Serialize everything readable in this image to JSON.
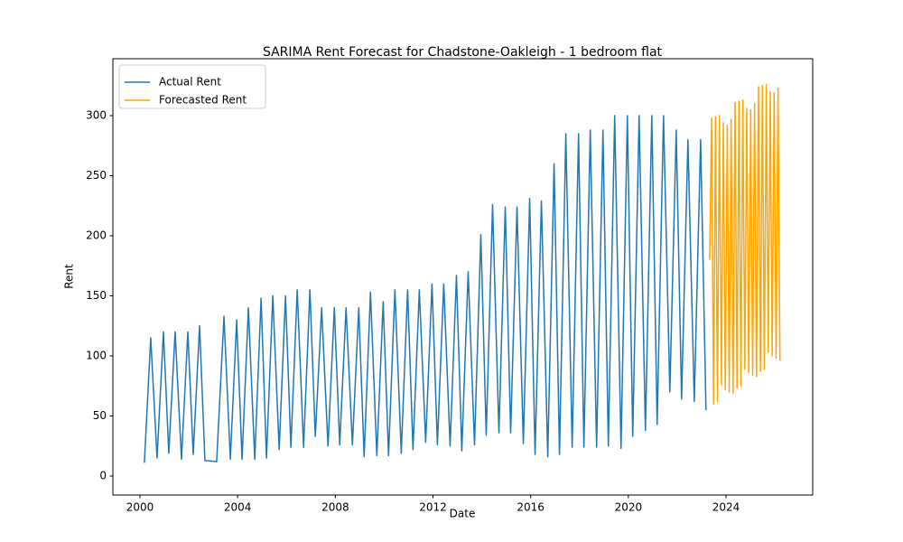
{
  "chart_data": {
    "type": "line",
    "title": "SARIMA Rent Forecast for Chadstone-Oakleigh - 1 bedroom flat",
    "x_label": "Date",
    "y_label": "Rent",
    "xlim": [
      1998.89,
      2027.55
    ],
    "ylim": [
      -15.8,
      347.4
    ],
    "xticks": [
      2000,
      2004,
      2008,
      2012,
      2016,
      2020,
      2024
    ],
    "yticks": [
      0,
      50,
      100,
      150,
      200,
      250,
      300
    ],
    "grid": false,
    "legend": "upper left",
    "series": [
      {
        "name": "Actual Rent",
        "color": "#1f77b4",
        "x": [
          2000.18,
          2000.44,
          2000.7,
          2000.96,
          2001.18,
          2001.44,
          2001.7,
          2001.96,
          2002.18,
          2002.44,
          2002.66,
          2003.14,
          2003.44,
          2003.7,
          2003.96,
          2004.18,
          2004.44,
          2004.7,
          2004.96,
          2005.18,
          2005.44,
          2005.7,
          2005.96,
          2006.18,
          2006.44,
          2006.7,
          2006.96,
          2007.18,
          2007.44,
          2007.7,
          2007.96,
          2008.18,
          2008.44,
          2008.7,
          2008.96,
          2009.18,
          2009.44,
          2009.7,
          2009.96,
          2010.18,
          2010.44,
          2010.7,
          2010.96,
          2011.18,
          2011.44,
          2011.7,
          2011.96,
          2012.18,
          2012.44,
          2012.7,
          2012.96,
          2013.18,
          2013.44,
          2013.7,
          2013.96,
          2014.18,
          2014.44,
          2014.7,
          2014.96,
          2015.18,
          2015.44,
          2015.7,
          2015.96,
          2016.18,
          2016.44,
          2016.7,
          2016.96,
          2017.18,
          2017.44,
          2017.7,
          2017.96,
          2018.18,
          2018.44,
          2018.7,
          2018.96,
          2019.18,
          2019.44,
          2019.7,
          2019.96,
          2020.18,
          2020.44,
          2020.7,
          2020.96,
          2021.18,
          2021.44,
          2021.7,
          2021.96,
          2022.18,
          2022.44,
          2022.7,
          2022.96,
          2023.18
        ],
        "values": [
          11,
          115,
          15,
          120,
          19,
          120,
          14,
          120,
          18,
          125,
          13,
          12,
          133,
          14,
          130,
          14,
          140,
          14,
          148,
          15,
          150,
          22,
          150,
          24,
          155,
          24,
          155,
          33,
          140,
          25,
          140,
          26,
          140,
          26,
          140,
          16,
          153,
          17,
          145,
          17,
          155,
          19,
          155,
          22,
          155,
          28,
          160,
          26,
          160,
          25,
          167,
          21,
          170,
          26,
          201,
          34,
          226,
          36,
          224,
          36,
          224,
          27,
          231,
          18,
          229,
          16,
          260,
          18,
          285,
          24,
          285,
          24,
          288,
          24,
          288,
          25,
          300,
          23,
          300,
          33,
          300,
          38,
          300,
          43,
          300,
          70,
          288,
          64,
          280,
          62,
          280,
          55
        ]
      },
      {
        "name": "Forecasted Rent",
        "color": "#ffa500",
        "x": [
          2023.33,
          2023.41,
          2023.49,
          2023.57,
          2023.65,
          2023.73,
          2023.81,
          2023.89,
          2023.97,
          2024.05,
          2024.13,
          2024.21,
          2024.29,
          2024.37,
          2024.45,
          2024.53,
          2024.61,
          2024.69,
          2024.77,
          2024.85,
          2024.93,
          2025.01,
          2025.09,
          2025.17,
          2025.25,
          2025.33,
          2025.41,
          2025.49,
          2025.57,
          2025.65,
          2025.73,
          2025.81,
          2025.89,
          2025.97,
          2026.05,
          2026.13,
          2026.21
        ],
        "values": [
          180,
          298,
          60,
          299,
          62,
          300,
          76,
          294,
          72,
          292,
          70,
          297,
          69,
          311,
          73,
          312,
          75,
          313,
          89,
          306,
          86,
          305,
          84,
          310,
          83,
          324,
          87,
          325,
          89,
          326,
          103,
          320,
          100,
          319,
          98,
          323,
          96
        ]
      }
    ]
  }
}
